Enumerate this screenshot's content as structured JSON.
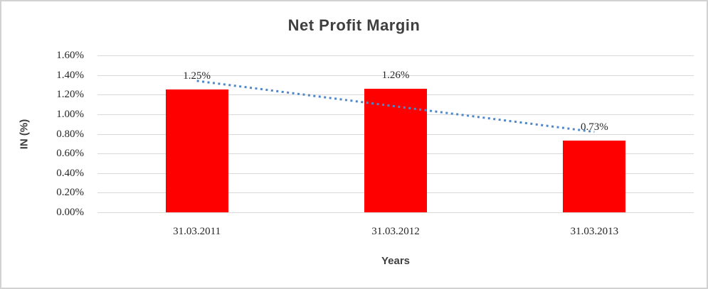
{
  "chart_data": {
    "type": "bar",
    "title": "Net Profit Margin",
    "xlabel": "Years",
    "ylabel": "IN (%)",
    "categories": [
      "31.03.2011",
      "31.03.2012",
      "31.03.2013"
    ],
    "series": [
      {
        "name": "Net Profit Margin",
        "values": [
          1.25,
          1.26,
          0.73
        ]
      }
    ],
    "data_labels": [
      "1.25%",
      "1.26%",
      "0.73%"
    ],
    "y_ticks": [
      "1.60%",
      "1.40%",
      "1.20%",
      "1.00%",
      "0.80%",
      "0.60%",
      "0.40%",
      "0.20%",
      "0.00%"
    ],
    "ylim": [
      0,
      1.6
    ],
    "grid": true,
    "legend": "none",
    "bar_color": "#fe0000",
    "gridline_color": "#d9d9d9",
    "text_color": "#262626",
    "title_color": "#3f3f3f",
    "trendline": {
      "type": "linear",
      "style": "dotted",
      "color": "#4e88c9",
      "start_value": 1.34,
      "end_value": 0.82
    }
  }
}
